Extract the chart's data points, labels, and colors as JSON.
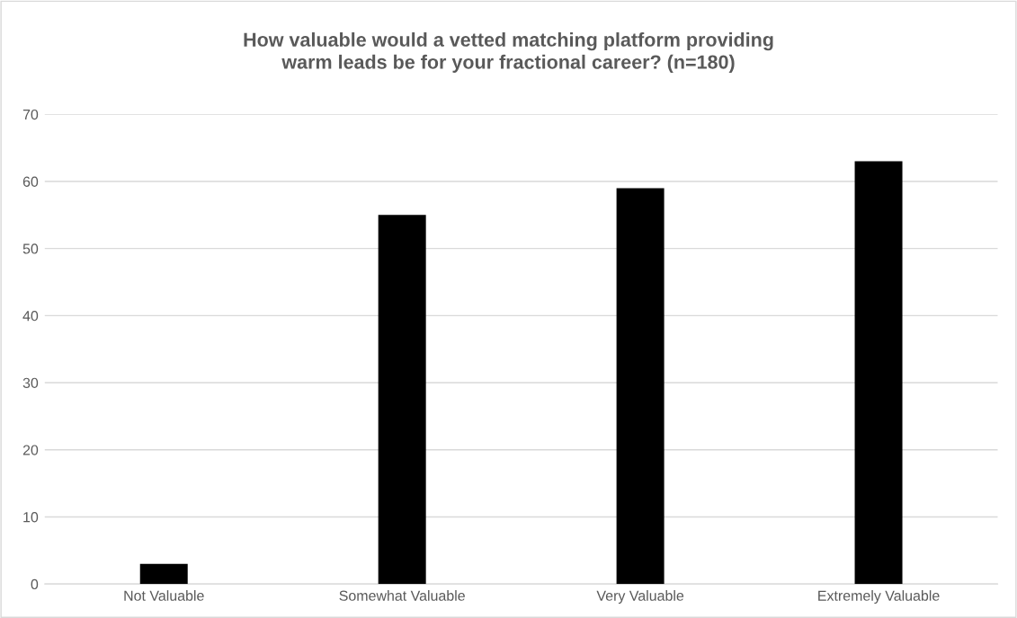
{
  "chart_data": {
    "type": "bar",
    "title": "How valuable would a vetted matching platform providing warm leads be for your fractional career? (n=180)",
    "categories": [
      "Not Valuable",
      "Somewhat Valuable",
      "Very Valuable",
      "Extremely Valuable"
    ],
    "values": [
      3,
      55,
      59,
      63
    ],
    "color": "#000000",
    "ylim": [
      0,
      70
    ],
    "yticks": [
      0,
      10,
      20,
      30,
      40,
      50,
      60,
      70
    ],
    "grid": "y",
    "legend": false
  }
}
